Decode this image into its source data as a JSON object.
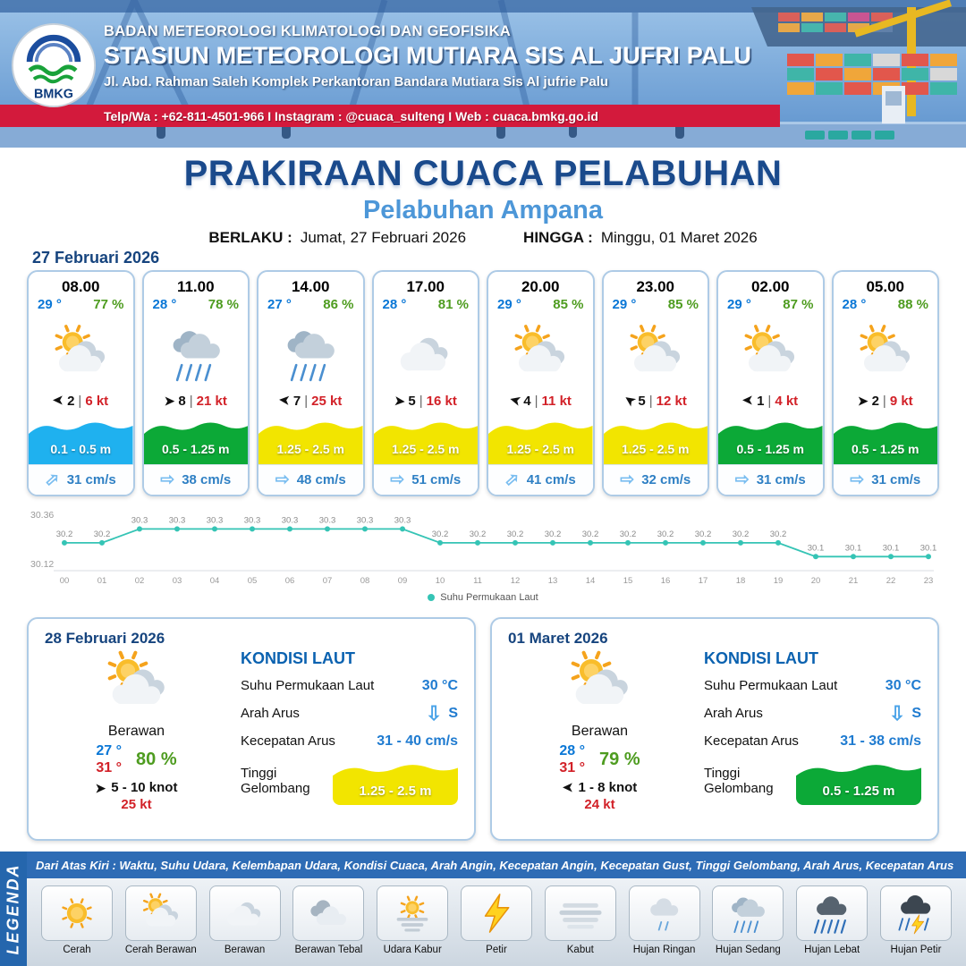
{
  "header": {
    "logo_text": "BMKG",
    "org_line": "BADAN METEOROLOGI KLIMATOLOGI DAN GEOFISIKA",
    "station_line": "STASIUN METEOROLOGI MUTIARA SIS AL JUFRI PALU",
    "address_line": "Jl. Abd. Rahman Saleh Komplek Perkantoran Bandara Mutiara Sis Al jufrie Palu",
    "contact_line": "Telp/Wa : +62-811-4501-966  I  Instagram : @cuaca_sulteng  I  Web : cuaca.bmkg.go.id"
  },
  "title": {
    "main": "PRAKIRAAN CUACA PELABUHAN",
    "subtitle": "Pelabuhan Ampana"
  },
  "validity": {
    "berlaku_label": "BERLAKU :",
    "berlaku_value": "Jumat, 27 Februari 2026",
    "hingga_label": "HINGGA :",
    "hingga_value": "Minggu, 01 Maret 2026"
  },
  "forecast_date": "27 Februari 2026",
  "forecast_cards": [
    {
      "time": "08.00",
      "temp": "29 °",
      "humidity": "77 %",
      "icon": "partly",
      "wind_rot": 180,
      "wind_num": "2",
      "wind_speed": "6 kt",
      "wave_label": "0.1 - 0.5 m",
      "wave_color": "#1fb1ef",
      "current_rot": -42,
      "current_label": "31 cm/s"
    },
    {
      "time": "11.00",
      "temp": "28 °",
      "humidity": "78 %",
      "icon": "rain-med",
      "wind_rot": 0,
      "wind_num": "8",
      "wind_speed": "21 kt",
      "wave_label": "0.5 - 1.25 m",
      "wave_color": "#0ca937",
      "current_rot": 0,
      "current_label": "38 cm/s"
    },
    {
      "time": "14.00",
      "temp": "27 °",
      "humidity": "86 %",
      "icon": "rain-med",
      "wind_rot": 185,
      "wind_num": "7",
      "wind_speed": "25 kt",
      "wave_label": "1.25 - 2.5 m",
      "wave_color": "#f2e500",
      "current_rot": 0,
      "current_label": "48 cm/s"
    },
    {
      "time": "17.00",
      "temp": "28 °",
      "humidity": "81 %",
      "icon": "cloudy",
      "wind_rot": 5,
      "wind_num": "5",
      "wind_speed": "16 kt",
      "wave_label": "1.25 - 2.5 m",
      "wave_color": "#f2e500",
      "current_rot": 0,
      "current_label": "51 cm/s"
    },
    {
      "time": "20.00",
      "temp": "29 °",
      "humidity": "85 %",
      "icon": "partly",
      "wind_rot": 195,
      "wind_num": "4",
      "wind_speed": "11 kt",
      "wave_label": "1.25 - 2.5 m",
      "wave_color": "#f2e500",
      "current_rot": -42,
      "current_label": "41 cm/s"
    },
    {
      "time": "23.00",
      "temp": "29 °",
      "humidity": "85 %",
      "icon": "partly",
      "wind_rot": 215,
      "wind_num": "5",
      "wind_speed": "12 kt",
      "wave_label": "1.25 - 2.5 m",
      "wave_color": "#f2e500",
      "current_rot": 0,
      "current_label": "32 cm/s"
    },
    {
      "time": "02.00",
      "temp": "29 °",
      "humidity": "87 %",
      "icon": "partly",
      "wind_rot": 180,
      "wind_num": "1",
      "wind_speed": "4 kt",
      "wave_label": "0.5 - 1.25 m",
      "wave_color": "#0ca937",
      "current_rot": 0,
      "current_label": "31 cm/s"
    },
    {
      "time": "05.00",
      "temp": "28 °",
      "humidity": "88 %",
      "icon": "partly",
      "wind_rot": 0,
      "wind_num": "2",
      "wind_speed": "9 kt",
      "wave_label": "0.5 - 1.25 m",
      "wave_color": "#0ca937",
      "current_rot": 0,
      "current_label": "31 cm/s"
    }
  ],
  "chart_data": {
    "type": "line",
    "legend": "Suhu Permukaan Laut",
    "line_color": "#35c4b5",
    "ylim": [
      30.12,
      30.36
    ],
    "yticks": [
      "30.36",
      "30.12"
    ],
    "x": [
      "00",
      "01",
      "02",
      "03",
      "04",
      "05",
      "06",
      "07",
      "08",
      "09",
      "10",
      "11",
      "12",
      "13",
      "14",
      "15",
      "16",
      "17",
      "18",
      "19",
      "20",
      "21",
      "22",
      "23"
    ],
    "values": [
      30.2,
      30.2,
      30.3,
      30.3,
      30.3,
      30.3,
      30.3,
      30.3,
      30.3,
      30.3,
      30.2,
      30.2,
      30.2,
      30.2,
      30.2,
      30.2,
      30.2,
      30.2,
      30.2,
      30.2,
      30.1,
      30.1,
      30.1,
      30.1
    ],
    "labels": [
      "30.2",
      "30.2",
      "30.3",
      "30.3",
      "30.3",
      "30.3",
      "30.3",
      "30.3",
      "30.3",
      "30.3",
      "30.2",
      "30.2",
      "30.2",
      "30.2",
      "30.2",
      "30.2",
      "30.2",
      "30.2",
      "30.2",
      "30.2",
      "30.1",
      "30.1",
      "30.1",
      "30.1"
    ]
  },
  "daily": [
    {
      "date": "28 Februari 2026",
      "icon": "partly",
      "condition": "Berawan",
      "temp_min": "27 °",
      "temp_max": "31 °",
      "humidity": "80 %",
      "wind_rot": 0,
      "wind_range": "5  - 10 knot",
      "gust": "25 kt",
      "sea": {
        "heading": "KONDISI LAUT",
        "sst_label": "Suhu Permukaan Laut",
        "sst": "30 °C",
        "current_dir_label": "Arah Arus",
        "current_dir": "S",
        "current_speed_label": "Kecepatan Arus",
        "current_speed": "31 - 40 cm/s",
        "wave_label": "Tinggi Gelombang",
        "wave": "1.25 - 2.5 m",
        "wave_color": "#f2e500"
      }
    },
    {
      "date": "01 Maret 2026",
      "icon": "partly",
      "condition": "Berawan",
      "temp_min": "28 °",
      "temp_max": "31 °",
      "humidity": "79 %",
      "wind_rot": 180,
      "wind_range": "1  - 8 knot",
      "gust": "24 kt",
      "sea": {
        "heading": "KONDISI LAUT",
        "sst_label": "Suhu Permukaan Laut",
        "sst": "30 °C",
        "current_dir_label": "Arah Arus",
        "current_dir": "S",
        "current_speed_label": "Kecepatan Arus",
        "current_speed": "31 - 38 cm/s",
        "wave_label": "Tinggi Gelombang",
        "wave": "0.5 - 1.25 m",
        "wave_color": "#0ca937"
      }
    }
  ],
  "legend": {
    "ribbon": "LEGENDA",
    "description": "Dari Atas Kiri : Waktu, Suhu Udara, Kelembapan Udara, Kondisi Cuaca, Arah Angin, Kecepatan Angin, Kecepatan Gust, Tinggi Gelombang, Arah Arus, Kecepatan Arus",
    "items": [
      {
        "label": "Cerah",
        "icon": "sunny"
      },
      {
        "label": "Cerah Berawan",
        "icon": "partly"
      },
      {
        "label": "Berawan",
        "icon": "cloudy"
      },
      {
        "label": "Berawan Tebal",
        "icon": "cloudy-thick"
      },
      {
        "label": "Udara Kabur",
        "icon": "haze"
      },
      {
        "label": "Petir",
        "icon": "thunder"
      },
      {
        "label": "Kabut",
        "icon": "fog"
      },
      {
        "label": "Hujan Ringan",
        "icon": "rain-light"
      },
      {
        "label": "Hujan Sedang",
        "icon": "rain-med"
      },
      {
        "label": "Hujan Lebat",
        "icon": "rain-heavy"
      },
      {
        "label": "Hujan Petir",
        "icon": "storm"
      }
    ]
  }
}
